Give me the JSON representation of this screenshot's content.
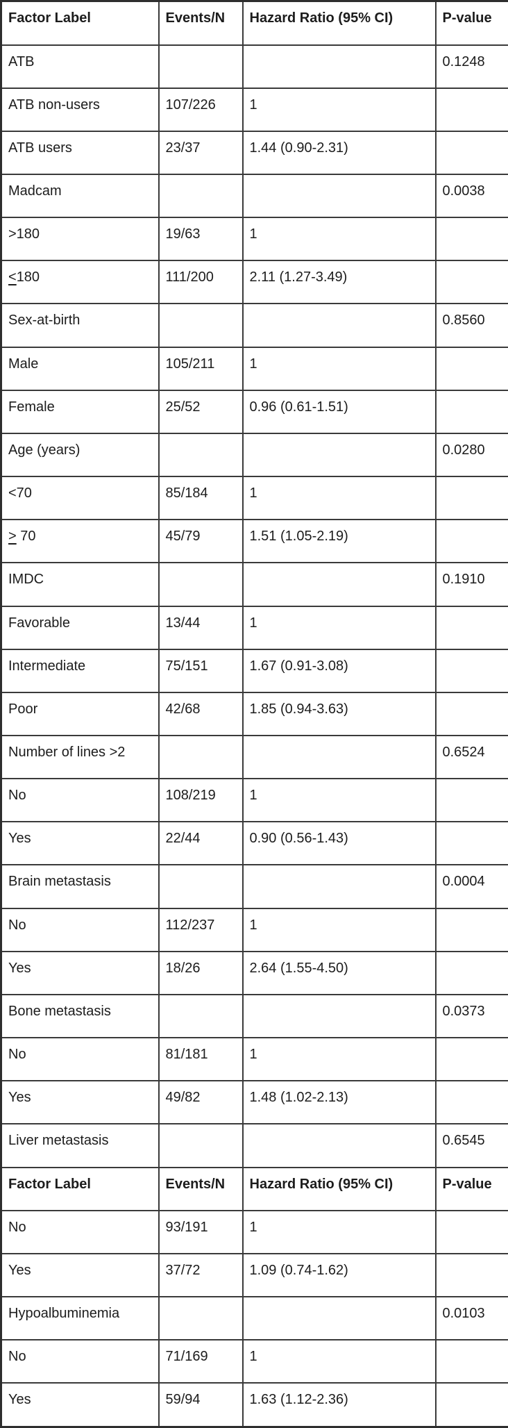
{
  "table": {
    "colors": {
      "border": "#3a3a3a",
      "outer_border": "#2e2e2e",
      "text": "#1c1c1c",
      "background": "#ffffff"
    },
    "columns": [
      {
        "key": "label",
        "label": "Factor Label"
      },
      {
        "key": "events",
        "label": "Events/N"
      },
      {
        "key": "hr",
        "label": "Hazard Ratio (95% CI)"
      },
      {
        "key": "p",
        "label": "P-value"
      }
    ],
    "rows": [
      {
        "type": "header"
      },
      {
        "type": "group",
        "label": "ATB",
        "events": "",
        "hr": "",
        "p": "0.1248"
      },
      {
        "type": "item",
        "label": "ATB non-users",
        "events": "107/226",
        "hr": "1",
        "p": ""
      },
      {
        "type": "item",
        "label": "ATB users",
        "events": "23/37",
        "hr": "1.44 (0.90-2.31)",
        "p": ""
      },
      {
        "type": "group",
        "label": "Madcam",
        "events": "",
        "hr": "",
        "p": "0.0038"
      },
      {
        "type": "item",
        "label": ">180",
        "events": "19/63",
        "hr": "1",
        "p": ""
      },
      {
        "type": "item",
        "label": "<180",
        "underline_first": true,
        "events": "111/200",
        "hr": "2.11 (1.27-3.49)",
        "p": ""
      },
      {
        "type": "group",
        "label": "Sex-at-birth",
        "events": "",
        "hr": "",
        "p": "0.8560"
      },
      {
        "type": "item",
        "label": "Male",
        "events": "105/211",
        "hr": "1",
        "p": ""
      },
      {
        "type": "item",
        "label": "Female",
        "events": "25/52",
        "hr": "0.96 (0.61-1.51)",
        "p": ""
      },
      {
        "type": "group",
        "label": "Age (years)",
        "events": "",
        "hr": "",
        "p": "0.0280"
      },
      {
        "type": "item",
        "label": "<70",
        "events": "85/184",
        "hr": "1",
        "p": ""
      },
      {
        "type": "item",
        "label": "> 70",
        "underline_first": true,
        "events": "45/79",
        "hr": "1.51 (1.05-2.19)",
        "p": ""
      },
      {
        "type": "group",
        "label": "IMDC",
        "events": "",
        "hr": "",
        "p": "0.1910"
      },
      {
        "type": "item",
        "label": "Favorable",
        "events": "13/44",
        "hr": "1",
        "p": ""
      },
      {
        "type": "item",
        "label": "Intermediate",
        "events": "75/151",
        "hr": "1.67 (0.91-3.08)",
        "p": ""
      },
      {
        "type": "item",
        "label": "Poor",
        "events": "42/68",
        "hr": "1.85 (0.94-3.63)",
        "p": ""
      },
      {
        "type": "group",
        "label": "Number of lines >2",
        "events": "",
        "hr": "",
        "p": "0.6524"
      },
      {
        "type": "item",
        "label": "No",
        "events": "108/219",
        "hr": "1",
        "p": ""
      },
      {
        "type": "item",
        "label": "Yes",
        "events": "22/44",
        "hr": "0.90 (0.56-1.43)",
        "p": ""
      },
      {
        "type": "group",
        "label": "Brain metastasis",
        "events": "",
        "hr": "",
        "p": "0.0004"
      },
      {
        "type": "item",
        "label": "No",
        "events": "112/237",
        "hr": "1",
        "p": ""
      },
      {
        "type": "item",
        "label": "Yes",
        "events": "18/26",
        "hr": "2.64 (1.55-4.50)",
        "p": ""
      },
      {
        "type": "group",
        "label": "Bone metastasis",
        "events": "",
        "hr": "",
        "p": "0.0373"
      },
      {
        "type": "item",
        "label": "No",
        "events": "81/181",
        "hr": "1",
        "p": ""
      },
      {
        "type": "item",
        "label": "Yes",
        "events": "49/82",
        "hr": "1.48 (1.02-2.13)",
        "p": ""
      },
      {
        "type": "group",
        "label": "Liver metastasis",
        "events": "",
        "hr": "",
        "p": "0.6545"
      },
      {
        "type": "header"
      },
      {
        "type": "item",
        "label": "No",
        "events": "93/191",
        "hr": "1",
        "p": ""
      },
      {
        "type": "item",
        "label": "Yes",
        "events": "37/72",
        "hr": "1.09 (0.74-1.62)",
        "p": ""
      },
      {
        "type": "group",
        "label": "Hypoalbuminemia",
        "events": "",
        "hr": "",
        "p": "0.0103"
      },
      {
        "type": "item",
        "label": "No",
        "events": "71/169",
        "hr": "1",
        "p": ""
      },
      {
        "type": "item",
        "label": "Yes",
        "events": "59/94",
        "hr": "1.63 (1.12-2.36)",
        "p": ""
      }
    ]
  }
}
